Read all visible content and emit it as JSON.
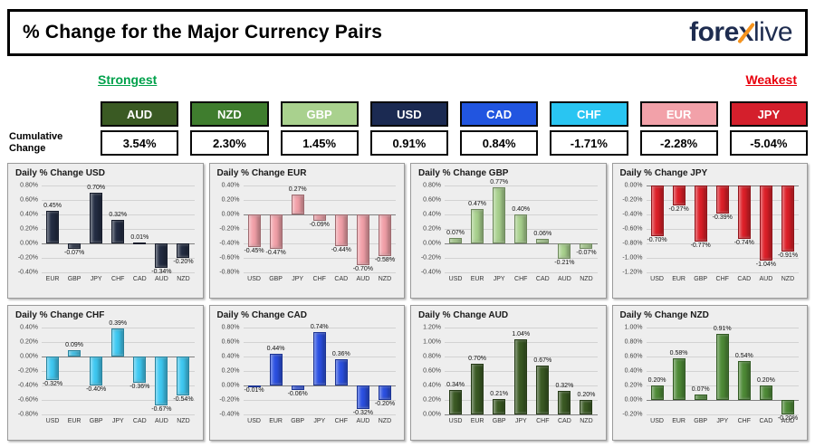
{
  "header": {
    "title": "% Change for the Major Currency Pairs",
    "logo": {
      "part1": "fore",
      "x": "x",
      "part2": "live",
      "navy": "#1e2c4f",
      "orange": "#f7941d"
    }
  },
  "labels": {
    "strongest": "Strongest",
    "weakest": "Weakest",
    "cumulative": "Cumulative Change"
  },
  "colors": {
    "strongest_green": "#00a14b",
    "weakest_red": "#e8000d"
  },
  "summary": [
    {
      "currency": "AUD",
      "value": "3.54%",
      "color": "#3a5a23",
      "text_color": "#ffffff"
    },
    {
      "currency": "NZD",
      "value": "2.30%",
      "color": "#3f7d2e",
      "text_color": "#ffffff"
    },
    {
      "currency": "GBP",
      "value": "1.45%",
      "color": "#a9d18e",
      "text_color": "#ffffff"
    },
    {
      "currency": "USD",
      "value": "0.91%",
      "color": "#1b2a52",
      "text_color": "#ffffff"
    },
    {
      "currency": "CAD",
      "value": "0.84%",
      "color": "#2155e0",
      "text_color": "#ffffff"
    },
    {
      "currency": "CHF",
      "value": "-1.71%",
      "color": "#29c5f2",
      "text_color": "#ffffff"
    },
    {
      "currency": "EUR",
      "value": "-2.28%",
      "color": "#f2a1a9",
      "text_color": "#ffffff"
    },
    {
      "currency": "JPY",
      "value": "-5.04%",
      "color": "#d41f2c",
      "text_color": "#ffffff"
    }
  ],
  "chart_data": [
    {
      "type": "bar",
      "title": "Daily % Change USD",
      "color": "#232c42",
      "categories": [
        "EUR",
        "GBP",
        "JPY",
        "CHF",
        "CAD",
        "AUD",
        "NZD"
      ],
      "values": [
        0.45,
        -0.07,
        0.7,
        0.32,
        0.01,
        -0.34,
        -0.2
      ],
      "ylim": [
        -0.4,
        0.8
      ],
      "step": 0.2,
      "grid": true,
      "xlabel": "",
      "ylabel": ""
    },
    {
      "type": "bar",
      "title": "Daily % Change EUR",
      "color": "#f2a1a9",
      "categories": [
        "USD",
        "GBP",
        "JPY",
        "CHF",
        "CAD",
        "AUD",
        "NZD"
      ],
      "values": [
        -0.45,
        -0.47,
        0.27,
        -0.09,
        -0.44,
        -0.7,
        -0.58
      ],
      "ylim": [
        -0.8,
        0.4
      ],
      "step": 0.2,
      "grid": true,
      "xlabel": "",
      "ylabel": ""
    },
    {
      "type": "bar",
      "title": "Daily % Change GBP",
      "color": "#a9d18e",
      "categories": [
        "USD",
        "EUR",
        "JPY",
        "CHF",
        "CAD",
        "AUD",
        "NZD"
      ],
      "values": [
        0.07,
        0.47,
        0.77,
        0.4,
        0.06,
        -0.21,
        -0.07
      ],
      "ylim": [
        -0.4,
        0.8
      ],
      "step": 0.2,
      "grid": true,
      "xlabel": "",
      "ylabel": ""
    },
    {
      "type": "bar",
      "title": "Daily % Change JPY",
      "color": "#dd1f28",
      "categories": [
        "USD",
        "EUR",
        "GBP",
        "CHF",
        "CAD",
        "AUD",
        "NZD"
      ],
      "values": [
        -0.7,
        -0.27,
        -0.77,
        -0.39,
        -0.74,
        -1.04,
        -0.91
      ],
      "ylim": [
        -1.2,
        0.0
      ],
      "step": 0.2,
      "grid": true,
      "xlabel": "",
      "ylabel": ""
    },
    {
      "type": "bar",
      "title": "Daily % Change CHF",
      "color": "#3fc9f2",
      "categories": [
        "USD",
        "EUR",
        "GBP",
        "JPY",
        "CAD",
        "AUD",
        "NZD"
      ],
      "values": [
        -0.32,
        0.09,
        -0.4,
        0.39,
        -0.36,
        -0.67,
        -0.54
      ],
      "ylim": [
        -0.8,
        0.4
      ],
      "step": 0.2,
      "grid": true,
      "xlabel": "",
      "ylabel": ""
    },
    {
      "type": "bar",
      "title": "Daily % Change CAD",
      "color": "#2b50e2",
      "categories": [
        "USD",
        "EUR",
        "GBP",
        "JPY",
        "CHF",
        "AUD",
        "NZD"
      ],
      "values": [
        -0.01,
        0.44,
        -0.06,
        0.74,
        0.36,
        -0.32,
        -0.2
      ],
      "ylim": [
        -0.4,
        0.8
      ],
      "step": 0.2,
      "grid": true,
      "xlabel": "",
      "ylabel": ""
    },
    {
      "type": "bar",
      "title": "Daily % Change AUD",
      "color": "#3a5a23",
      "categories": [
        "USD",
        "EUR",
        "GBP",
        "JPY",
        "CHF",
        "CAD",
        "NZD"
      ],
      "values": [
        0.34,
        0.7,
        0.21,
        1.04,
        0.67,
        0.32,
        0.2
      ],
      "ylim": [
        0.0,
        1.2
      ],
      "step": 0.2,
      "grid": true,
      "xlabel": "",
      "ylabel": ""
    },
    {
      "type": "bar",
      "title": "Daily % Change NZD",
      "color": "#4e8b37",
      "categories": [
        "USD",
        "EUR",
        "GBP",
        "JPY",
        "CHF",
        "CAD",
        "AUD"
      ],
      "values": [
        0.2,
        0.58,
        0.07,
        0.91,
        0.54,
        0.2,
        -0.2
      ],
      "ylim": [
        -0.2,
        1.0
      ],
      "step": 0.2,
      "grid": true,
      "xlabel": "",
      "ylabel": ""
    }
  ]
}
